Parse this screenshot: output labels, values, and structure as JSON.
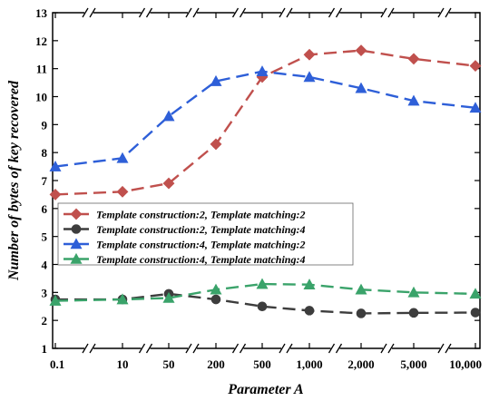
{
  "chart_data": {
    "type": "line",
    "title": "",
    "xlabel": "Parameter A",
    "ylabel": "Number of bytes of key recovered",
    "categories": [
      "0.1",
      "10",
      "50",
      "200",
      "500",
      "1,000",
      "2,000",
      "5,000",
      "10,000"
    ],
    "ylim": [
      1,
      13
    ],
    "yticks": [
      "1",
      "2",
      "3",
      "4",
      "5",
      "6",
      "7",
      "8",
      "9",
      "10",
      "11",
      "12",
      "13"
    ],
    "axis_breaks": true,
    "grid": false,
    "legend_position": "middle-left",
    "series": [
      {
        "name": "Template construction:2, Template matching:2",
        "color": "#c0504d",
        "marker": "diamond",
        "values": [
          6.5,
          6.6,
          6.9,
          8.3,
          10.7,
          11.5,
          11.65,
          11.35,
          11.1
        ]
      },
      {
        "name": "Template construction:2, Template matching:4",
        "color": "#3d3d3d",
        "marker": "circle",
        "values": [
          2.75,
          2.75,
          2.95,
          2.75,
          2.5,
          2.35,
          2.25,
          2.27,
          2.28
        ]
      },
      {
        "name": "Template construction:4, Template matching:2",
        "color": "#2e5fd8",
        "marker": "triangle",
        "values": [
          7.5,
          7.8,
          9.3,
          10.55,
          10.9,
          10.7,
          10.3,
          9.85,
          9.6
        ]
      },
      {
        "name": "Template construction:4, Template matching:4",
        "color": "#3aa36a",
        "marker": "triangle",
        "values": [
          2.7,
          2.75,
          2.8,
          3.1,
          3.3,
          3.28,
          3.1,
          3.0,
          2.95
        ]
      }
    ]
  }
}
